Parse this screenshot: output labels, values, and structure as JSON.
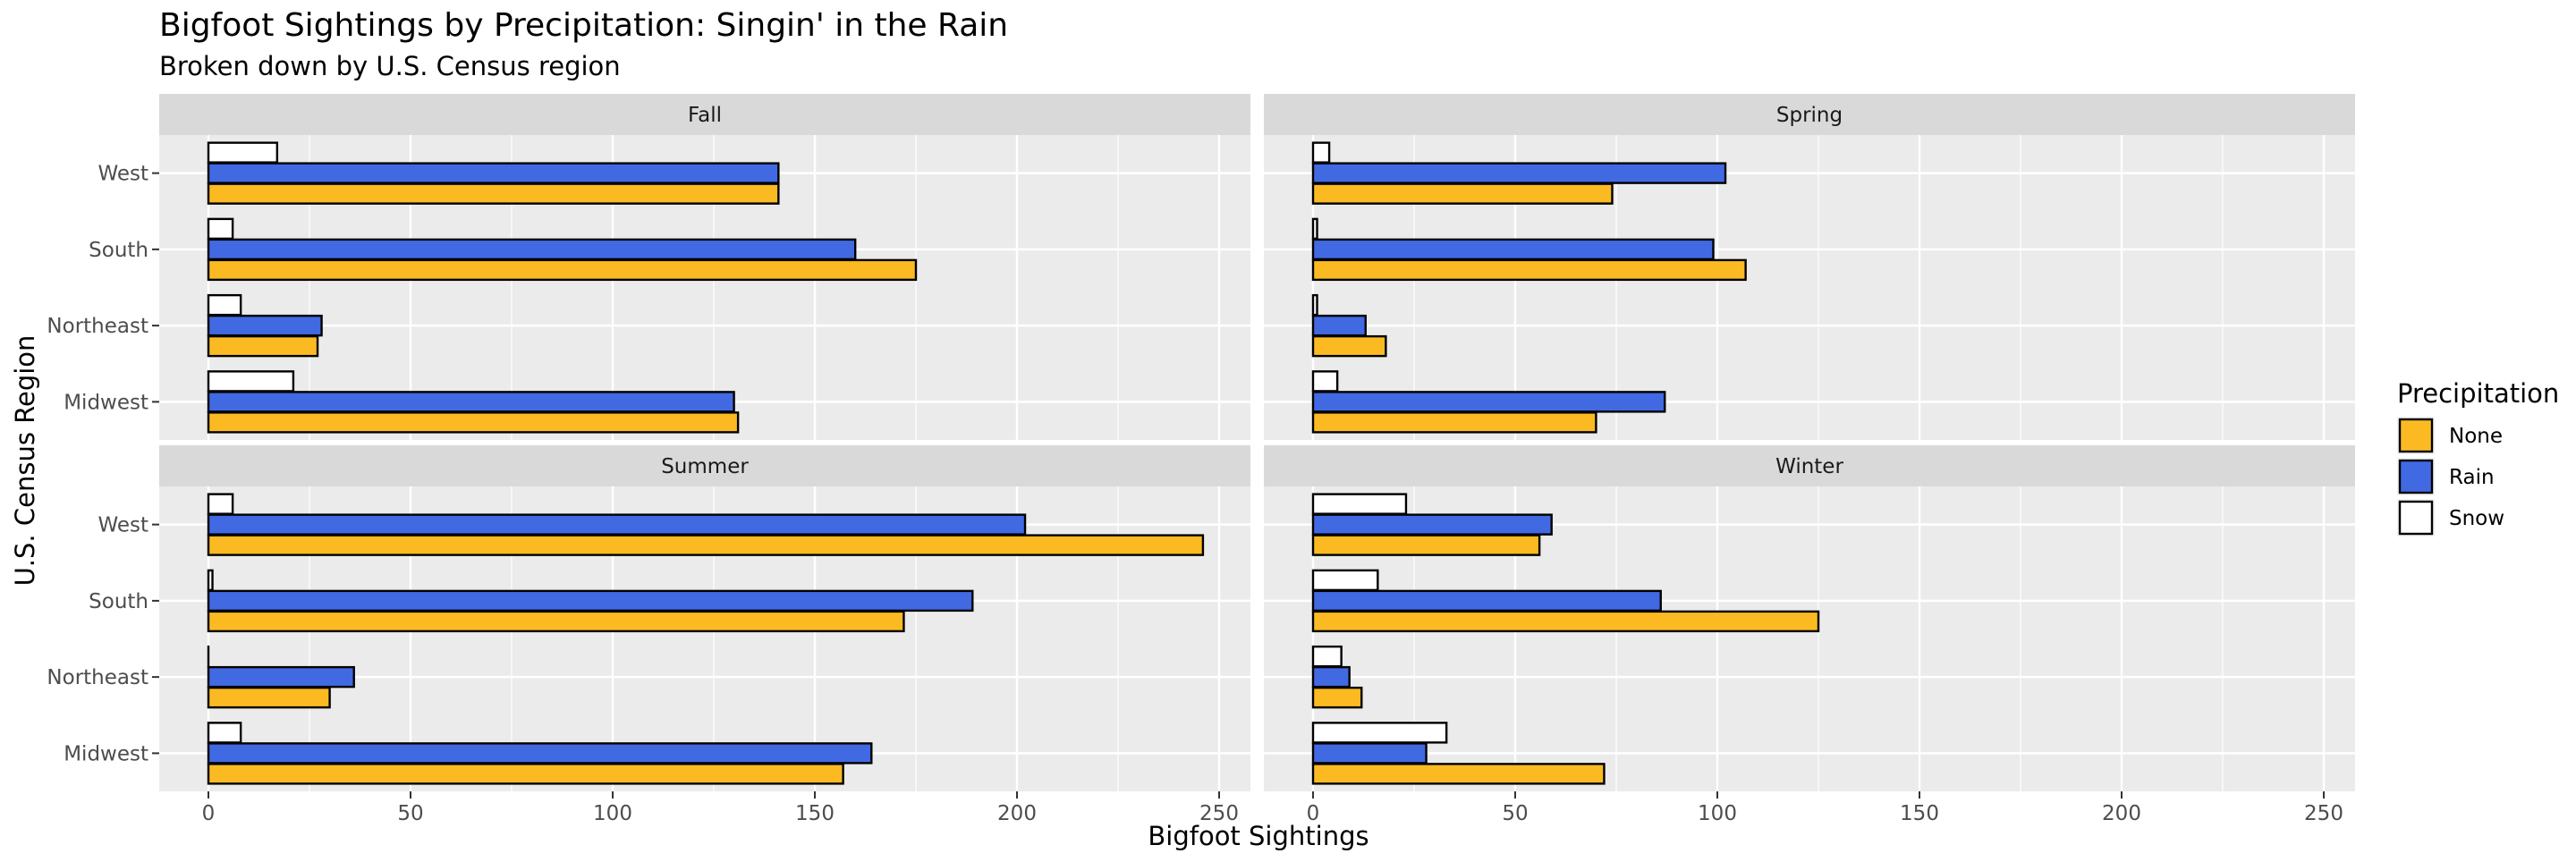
{
  "chart_data": {
    "type": "bar",
    "orientation": "horizontal",
    "title": "Bigfoot Sightings by Precipitation: Singin' in the Rain",
    "subtitle": "Broken down by U.S. Census region",
    "xlabel": "Bigfoot Sightings",
    "ylabel": "U.S. Census Region",
    "xlim": [
      0,
      250
    ],
    "x_ticks": [
      "0",
      "50",
      "100",
      "150",
      "200",
      "250"
    ],
    "categories": [
      "Midwest",
      "Northeast",
      "South",
      "West"
    ],
    "legend": {
      "title": "Precipitation",
      "placement": "right",
      "entries": [
        {
          "name": "None",
          "color": "#FBBA22"
        },
        {
          "name": "Rain",
          "color": "#4169E1"
        },
        {
          "name": "Snow",
          "color": "#FFFFFF"
        }
      ]
    },
    "grid": true,
    "panels": [
      {
        "name": "Fall",
        "series": [
          {
            "name": "None",
            "values": [
              131,
              27,
              175,
              141
            ]
          },
          {
            "name": "Rain",
            "values": [
              130,
              28,
              160,
              141
            ]
          },
          {
            "name": "Snow",
            "values": [
              21,
              8,
              6,
              17
            ]
          }
        ]
      },
      {
        "name": "Spring",
        "series": [
          {
            "name": "None",
            "values": [
              70,
              18,
              107,
              74
            ]
          },
          {
            "name": "Rain",
            "values": [
              87,
              13,
              99,
              102
            ]
          },
          {
            "name": "Snow",
            "values": [
              6,
              1,
              1,
              4
            ]
          }
        ]
      },
      {
        "name": "Summer",
        "series": [
          {
            "name": "None",
            "values": [
              157,
              30,
              172,
              246
            ]
          },
          {
            "name": "Rain",
            "values": [
              164,
              36,
              189,
              202
            ]
          },
          {
            "name": "Snow",
            "values": [
              8,
              0,
              1,
              6
            ]
          }
        ]
      },
      {
        "name": "Winter",
        "series": [
          {
            "name": "None",
            "values": [
              72,
              12,
              125,
              56
            ]
          },
          {
            "name": "Rain",
            "values": [
              28,
              9,
              86,
              59
            ]
          },
          {
            "name": "Snow",
            "values": [
              33,
              7,
              16,
              23
            ]
          }
        ]
      }
    ]
  }
}
